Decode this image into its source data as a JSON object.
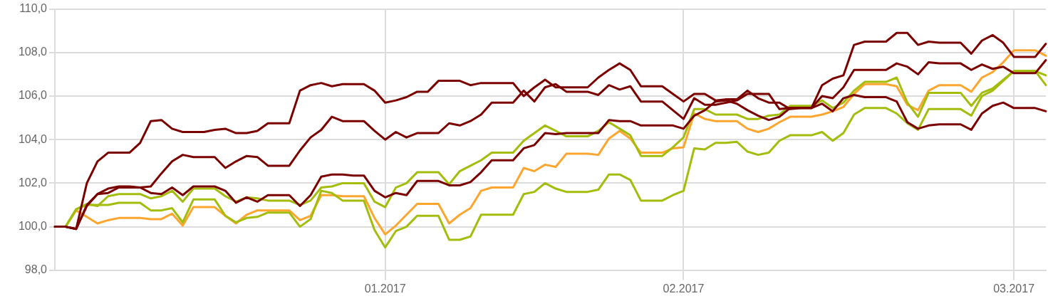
{
  "chart_data": {
    "type": "line",
    "categories": [
      null,
      null,
      null,
      null,
      null,
      null,
      null,
      null,
      null,
      null,
      null,
      null,
      null,
      null,
      null,
      null,
      null,
      null,
      null,
      null,
      null,
      null,
      null,
      null,
      null,
      null,
      null,
      null,
      null,
      null,
      null,
      "01.2017",
      null,
      null,
      null,
      null,
      null,
      null,
      null,
      null,
      null,
      null,
      null,
      null,
      null,
      null,
      null,
      null,
      null,
      null,
      null,
      null,
      null,
      null,
      null,
      null,
      null,
      null,
      null,
      "02.2017",
      null,
      null,
      null,
      null,
      null,
      null,
      null,
      null,
      null,
      null,
      null,
      null,
      null,
      null,
      null,
      null,
      null,
      null,
      null,
      null,
      null,
      null,
      null,
      null,
      null,
      null,
      null,
      null,
      null,
      null,
      "03.2017",
      null,
      null,
      null
    ],
    "series": [
      {
        "color": "#7b0000",
        "values": [
          100,
          100,
          99.9,
          102.0,
          103.0,
          103.4,
          103.4,
          103.4,
          103.85,
          104.85,
          104.9,
          104.5,
          104.35,
          104.35,
          104.35,
          104.45,
          104.5,
          104.3,
          104.3,
          104.4,
          104.75,
          104.75,
          104.75,
          106.25,
          106.5,
          106.6,
          106.45,
          106.55,
          106.55,
          106.55,
          106.25,
          105.7,
          105.8,
          105.95,
          106.2,
          106.2,
          106.7,
          106.7,
          106.7,
          106.5,
          106.6,
          106.6,
          106.6,
          106.6,
          106.0,
          106.4,
          106.75,
          106.4,
          106.4,
          106.4,
          106.4,
          106.85,
          107.2,
          107.5,
          107.2,
          106.45,
          106.45,
          106.45,
          106.1,
          105.75,
          106.1,
          106.1,
          105.8,
          105.85,
          105.85,
          106.25,
          105.9,
          105.7,
          105.7,
          105.4,
          105.45,
          105.45,
          106.5,
          106.8,
          106.95,
          108.35,
          108.5,
          108.5,
          108.5,
          108.9,
          108.9,
          108.35,
          108.5,
          108.45,
          108.45,
          108.45,
          107.95,
          108.55,
          108.8,
          108.45,
          107.8,
          107.8,
          107.8,
          108.4
        ]
      },
      {
        "color": "#7b0000",
        "values": [
          100,
          100,
          99.9,
          101.0,
          101.5,
          101.55,
          101.8,
          101.8,
          101.8,
          101.85,
          102.45,
          103.0,
          103.3,
          103.2,
          103.2,
          103.2,
          102.7,
          103.0,
          103.25,
          103.2,
          102.8,
          102.8,
          102.8,
          103.5,
          104.1,
          104.45,
          105.05,
          104.85,
          104.85,
          104.85,
          104.4,
          104.0,
          104.35,
          104.1,
          104.3,
          104.3,
          104.3,
          104.75,
          104.65,
          104.85,
          105.15,
          105.7,
          105.7,
          105.7,
          106.25,
          105.75,
          106.4,
          106.55,
          106.2,
          106.2,
          106.2,
          106.05,
          106.5,
          106.3,
          106.45,
          105.75,
          105.75,
          105.75,
          105.35,
          104.95,
          105.9,
          105.6,
          105.6,
          105.7,
          105.8,
          106.1,
          106.1,
          106.1,
          105.4,
          105.45,
          105.45,
          105.45,
          106.0,
          105.9,
          106.4,
          107.2,
          107.2,
          107.2,
          107.2,
          107.5,
          107.35,
          107.0,
          107.55,
          107.5,
          107.5,
          107.5,
          107.2,
          107.45,
          107.25,
          107.35,
          107.05,
          107.05,
          107.05,
          107.65
        ]
      },
      {
        "color": "#7b0000",
        "values": [
          100,
          100,
          99.9,
          100.95,
          101.5,
          101.75,
          101.85,
          101.85,
          101.8,
          101.55,
          101.5,
          101.8,
          101.45,
          101.85,
          101.85,
          101.85,
          101.65,
          101.1,
          101.35,
          101.15,
          101.45,
          101.45,
          101.45,
          100.95,
          101.45,
          102.3,
          102.4,
          102.4,
          102.35,
          102.35,
          101.65,
          101.35,
          101.55,
          101.45,
          102.1,
          102.1,
          102.1,
          101.9,
          101.9,
          102.05,
          102.5,
          103.05,
          103.05,
          103.05,
          103.6,
          103.75,
          104.3,
          104.25,
          104.3,
          104.3,
          104.3,
          104.3,
          104.9,
          104.85,
          104.85,
          104.65,
          104.65,
          104.65,
          104.65,
          104.5,
          105.1,
          105.35,
          105.75,
          105.8,
          105.65,
          105.35,
          105.1,
          104.9,
          105.05,
          105.45,
          105.45,
          105.45,
          105.65,
          105.3,
          105.9,
          106.05,
          105.95,
          105.95,
          105.95,
          105.75,
          104.8,
          104.5,
          104.65,
          104.7,
          104.7,
          104.7,
          104.45,
          105.2,
          105.55,
          105.7,
          105.45,
          105.45,
          105.45,
          105.3
        ]
      },
      {
        "color": "#a4bd0c",
        "values": [
          100,
          100,
          100.8,
          101.05,
          100.95,
          101.4,
          101.5,
          101.5,
          101.5,
          101.3,
          101.4,
          101.65,
          101.15,
          101.75,
          101.75,
          101.75,
          101.4,
          101.15,
          101.35,
          101.3,
          101.2,
          101.2,
          101.2,
          101.0,
          101.2,
          101.8,
          101.85,
          102.0,
          102.0,
          102.0,
          101.15,
          100.9,
          101.8,
          102.0,
          102.5,
          102.5,
          102.5,
          101.95,
          102.55,
          102.8,
          103.05,
          103.4,
          103.4,
          103.4,
          103.95,
          104.3,
          104.65,
          104.4,
          104.15,
          104.15,
          104.15,
          104.4,
          104.8,
          104.5,
          104.2,
          103.25,
          103.25,
          103.25,
          103.65,
          104.1,
          105.4,
          105.4,
          105.15,
          105.15,
          105.15,
          104.95,
          104.95,
          105.1,
          105.15,
          105.55,
          105.55,
          105.55,
          105.8,
          105.45,
          105.7,
          106.25,
          106.65,
          106.65,
          106.65,
          106.85,
          105.7,
          105.05,
          106.15,
          106.15,
          106.15,
          106.15,
          105.55,
          106.15,
          106.35,
          106.75,
          107.15,
          107.15,
          107.15,
          106.5
        ]
      },
      {
        "color": "#a4bd0c",
        "values": [
          100,
          100,
          100.8,
          101.0,
          101.0,
          101.0,
          101.1,
          101.1,
          101.1,
          100.75,
          100.75,
          100.85,
          100.2,
          101.25,
          101.25,
          101.25,
          100.5,
          100.2,
          100.4,
          100.45,
          100.65,
          100.65,
          100.65,
          100.0,
          100.35,
          101.65,
          101.55,
          101.2,
          101.2,
          101.2,
          99.85,
          99.05,
          99.8,
          100.0,
          100.5,
          100.5,
          100.5,
          99.4,
          99.4,
          99.55,
          100.55,
          100.55,
          100.55,
          100.55,
          101.5,
          101.6,
          102.0,
          101.75,
          101.6,
          101.6,
          101.6,
          101.7,
          102.4,
          102.4,
          102.15,
          101.2,
          101.2,
          101.2,
          101.45,
          101.65,
          103.6,
          103.55,
          103.85,
          103.85,
          103.9,
          103.45,
          103.3,
          103.4,
          103.95,
          104.2,
          104.2,
          104.2,
          104.35,
          103.95,
          104.3,
          105.15,
          105.45,
          105.45,
          105.45,
          105.2,
          104.75,
          104.45,
          105.4,
          105.4,
          105.4,
          105.4,
          105.1,
          106.0,
          106.25,
          106.7,
          107.15,
          107.15,
          107.15,
          106.95
        ]
      },
      {
        "color": "#fca62f",
        "values": [
          100,
          100,
          100.75,
          100.45,
          100.15,
          100.3,
          100.4,
          100.4,
          100.4,
          100.35,
          100.35,
          100.6,
          100.05,
          100.9,
          100.9,
          100.9,
          100.5,
          100.15,
          100.55,
          100.75,
          100.75,
          100.75,
          100.75,
          100.3,
          100.5,
          101.45,
          101.45,
          101.4,
          101.4,
          101.4,
          100.4,
          99.65,
          100.05,
          100.55,
          101.05,
          101.05,
          101.05,
          100.15,
          100.55,
          100.85,
          101.65,
          101.8,
          101.8,
          101.8,
          102.7,
          102.55,
          102.85,
          102.75,
          103.35,
          103.35,
          103.35,
          103.3,
          104.05,
          104.4,
          104.05,
          103.4,
          103.4,
          103.4,
          103.6,
          103.65,
          105.2,
          104.95,
          104.85,
          104.85,
          104.85,
          104.5,
          104.35,
          104.5,
          104.8,
          105.05,
          105.05,
          105.05,
          105.15,
          105.3,
          105.5,
          106.1,
          106.55,
          106.55,
          106.55,
          106.45,
          105.6,
          105.35,
          106.25,
          106.5,
          106.5,
          106.5,
          106.2,
          106.85,
          107.1,
          107.55,
          108.1,
          108.1,
          108.1,
          107.85
        ]
      }
    ],
    "ylim": [
      98,
      110
    ],
    "yticks": [
      {
        "value": 98,
        "label": "98,0"
      },
      {
        "value": 100,
        "label": "100,0"
      },
      {
        "value": 102,
        "label": "102,0"
      },
      {
        "value": 104,
        "label": "104,0"
      },
      {
        "value": 106,
        "label": "106,0"
      },
      {
        "value": 108,
        "label": "108,0"
      },
      {
        "value": 110,
        "label": "110,0"
      }
    ],
    "grid": true,
    "legend": false,
    "marker": "none",
    "line_style": "solid"
  }
}
